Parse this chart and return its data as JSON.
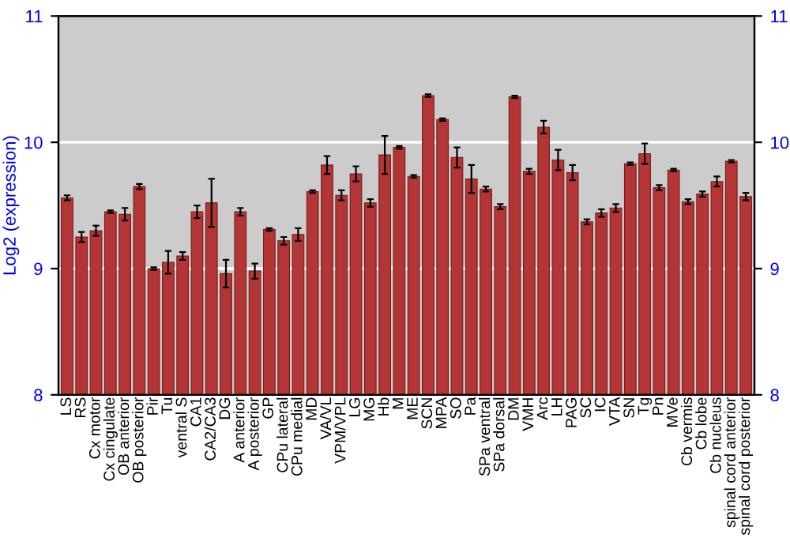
{
  "chart_data": {
    "type": "bar",
    "ylabel": "Log2 (expression)",
    "categories": [
      "LS",
      "RS",
      "Cx motor",
      "Cx cingulate",
      "OB anterior",
      "OB posterior",
      "Pir",
      "Tu",
      "ventral S",
      "CA1",
      "CA2/CA3",
      "DG",
      "A anterior",
      "A posterior",
      "GP",
      "CPu lateral",
      "CPu medial",
      "MD",
      "VA/VL",
      "VPM/VPL",
      "LG",
      "MG",
      "Hb",
      "M",
      "ME",
      "SCN",
      "MPA",
      "SO",
      "Pa",
      "SPa ventral",
      "SPa dorsal",
      "DM",
      "VMH",
      "Arc",
      "LH",
      "PAG",
      "SC",
      "IC",
      "VTA",
      "SN",
      "Tg",
      "Pn",
      "MVe",
      "Cb vermis",
      "Cb lobe",
      "Cb nucleus",
      "spinal cord anterior",
      "spinal cord posterior"
    ],
    "values": [
      9.56,
      9.25,
      9.3,
      9.45,
      9.43,
      9.65,
      9.0,
      9.05,
      9.1,
      9.45,
      9.52,
      8.96,
      9.45,
      8.98,
      9.31,
      9.22,
      9.27,
      9.61,
      9.82,
      9.58,
      9.75,
      9.52,
      9.9,
      9.96,
      9.73,
      10.37,
      10.18,
      9.88,
      9.71,
      9.63,
      9.49,
      10.36,
      9.77,
      10.12,
      9.86,
      9.76,
      9.37,
      9.44,
      9.48,
      9.83,
      9.91,
      9.64,
      9.78,
      9.53,
      9.59,
      9.69,
      9.85,
      9.57
    ],
    "errors": [
      0.02,
      0.04,
      0.04,
      0.01,
      0.05,
      0.02,
      0.01,
      0.09,
      0.03,
      0.05,
      0.19,
      0.11,
      0.03,
      0.06,
      0.01,
      0.03,
      0.05,
      0.01,
      0.07,
      0.04,
      0.06,
      0.03,
      0.15,
      0.01,
      0.01,
      0.01,
      0.01,
      0.08,
      0.11,
      0.02,
      0.02,
      0.01,
      0.02,
      0.05,
      0.08,
      0.06,
      0.02,
      0.03,
      0.03,
      0.01,
      0.08,
      0.02,
      0.01,
      0.02,
      0.02,
      0.04,
      0.01,
      0.03
    ],
    "color": "#b33535",
    "ylim": [
      8,
      11
    ],
    "yticks": [
      8,
      9,
      10,
      11
    ],
    "y2lim": [
      8,
      11
    ],
    "y2ticks": [
      8,
      9,
      10,
      11
    ],
    "grid": "y",
    "legend": false
  }
}
